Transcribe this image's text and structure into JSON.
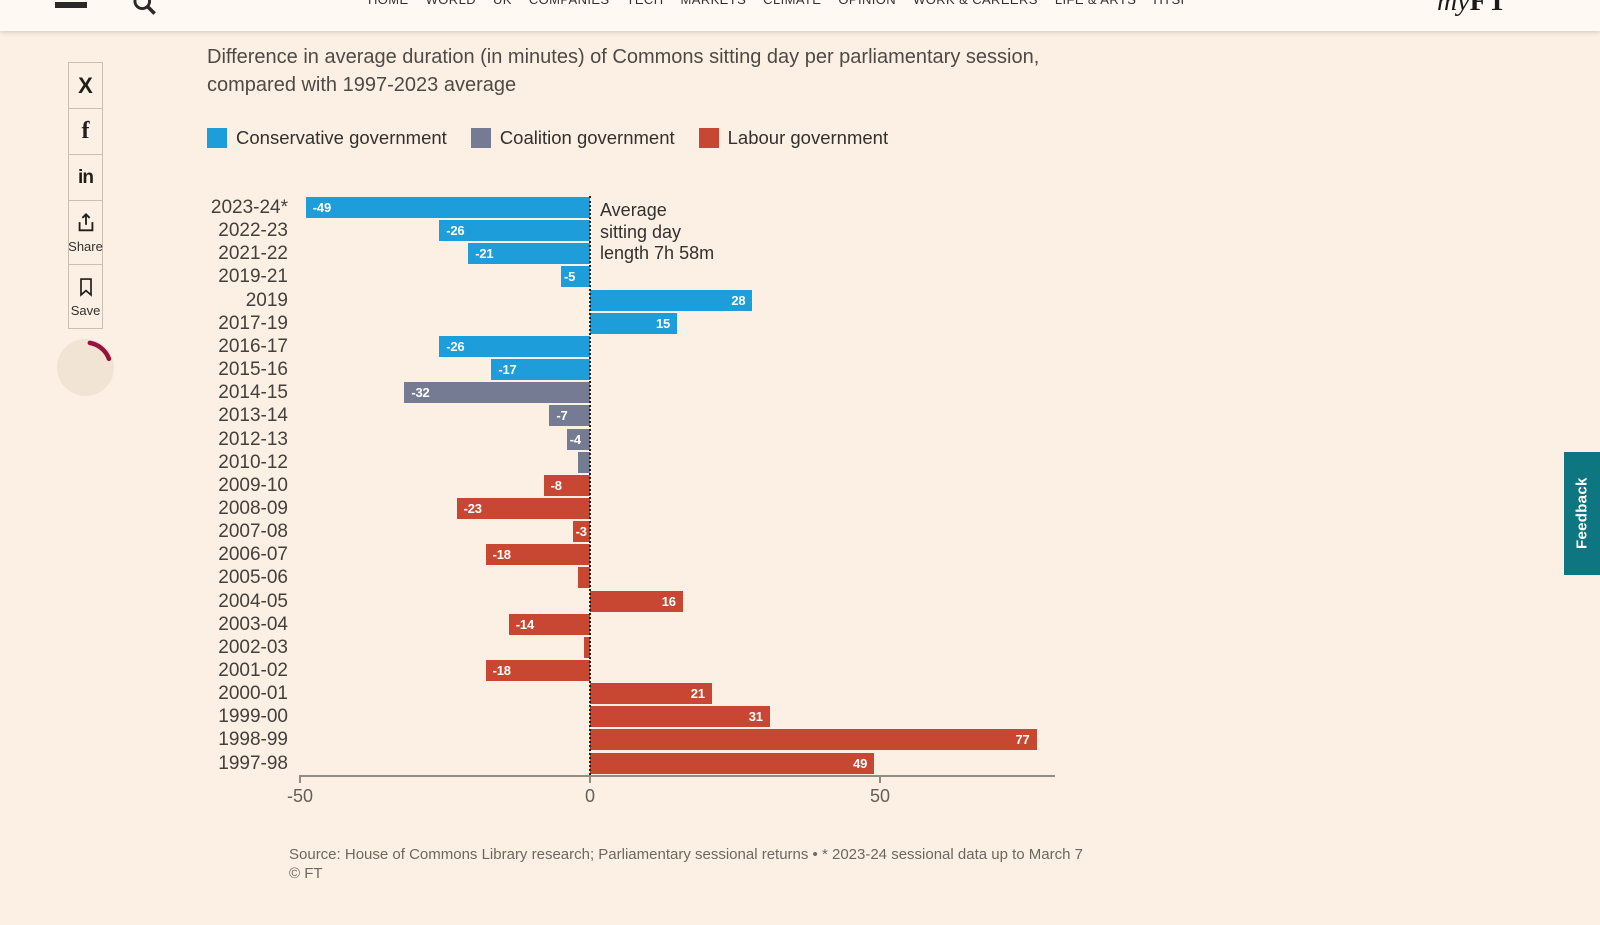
{
  "header": {
    "nav_items": [
      "HOME",
      "WORLD",
      "UK",
      "COMPANIES",
      "TECH",
      "MARKETS",
      "CLIMATE",
      "OPINION",
      "WORK & CAREERS",
      "LIFE & ARTS",
      "HTSI"
    ],
    "logo_my": "my",
    "logo_ft": "FT"
  },
  "share_rail": {
    "x": "X",
    "facebook": "f",
    "linkedin": "in",
    "share": "Share",
    "save": "Save"
  },
  "feedback": {
    "label": "Feedback",
    "color": "#0D7680"
  },
  "chart_data": {
    "type": "bar",
    "orientation": "horizontal",
    "title": "Difference in average duration (in minutes) of Commons sitting day per parliamentary session, compared with 1997-2023 average",
    "legend": [
      {
        "label": "Conservative government",
        "party": "conservative",
        "color": "#1D9DD9"
      },
      {
        "label": "Coalition government",
        "party": "coalition",
        "color": "#757B92"
      },
      {
        "label": "Labour government",
        "party": "labour",
        "color": "#C74732"
      }
    ],
    "annotation": "Average\nsitting day\nlength 7h 58m",
    "rows": [
      {
        "label": "2023-24*",
        "value": -49,
        "party": "conservative"
      },
      {
        "label": "2022-23",
        "value": -26,
        "party": "conservative"
      },
      {
        "label": "2021-22",
        "value": -21,
        "party": "conservative"
      },
      {
        "label": "2019-21",
        "value": -5,
        "party": "conservative"
      },
      {
        "label": "2019",
        "value": 28,
        "party": "conservative"
      },
      {
        "label": "2017-19",
        "value": 15,
        "party": "conservative"
      },
      {
        "label": "2016-17",
        "value": -26,
        "party": "conservative"
      },
      {
        "label": "2015-16",
        "value": -17,
        "party": "conservative"
      },
      {
        "label": "2014-15",
        "value": -32,
        "party": "coalition"
      },
      {
        "label": "2013-14",
        "value": -7,
        "party": "coalition"
      },
      {
        "label": "2012-13",
        "value": -4,
        "party": "coalition"
      },
      {
        "label": "2010-12",
        "value": -2,
        "party": "coalition"
      },
      {
        "label": "2009-10",
        "value": -8,
        "party": "labour"
      },
      {
        "label": "2008-09",
        "value": -23,
        "party": "labour"
      },
      {
        "label": "2007-08",
        "value": -3,
        "party": "labour"
      },
      {
        "label": "2006-07",
        "value": -18,
        "party": "labour"
      },
      {
        "label": "2005-06",
        "value": -2,
        "party": "labour"
      },
      {
        "label": "2004-05",
        "value": 16,
        "party": "labour"
      },
      {
        "label": "2003-04",
        "value": -14,
        "party": "labour"
      },
      {
        "label": "2002-03",
        "value": -1,
        "party": "labour"
      },
      {
        "label": "2001-02",
        "value": -18,
        "party": "labour"
      },
      {
        "label": "2000-01",
        "value": 21,
        "party": "labour"
      },
      {
        "label": "1999-00",
        "value": 31,
        "party": "labour"
      },
      {
        "label": "1998-99",
        "value": 77,
        "party": "labour"
      },
      {
        "label": "1997-98",
        "value": 49,
        "party": "labour"
      }
    ],
    "xticks": [
      {
        "value": -50,
        "label": "-50"
      },
      {
        "value": 0,
        "label": "0"
      },
      {
        "value": 50,
        "label": "50"
      }
    ],
    "xlim": [
      -50,
      80
    ],
    "value_label_min_abs": 3,
    "source": "Source: House of Commons Library research; Parliamentary sessional returns • * 2023-24 sessional data up to March 7",
    "copyright": "© FT"
  }
}
